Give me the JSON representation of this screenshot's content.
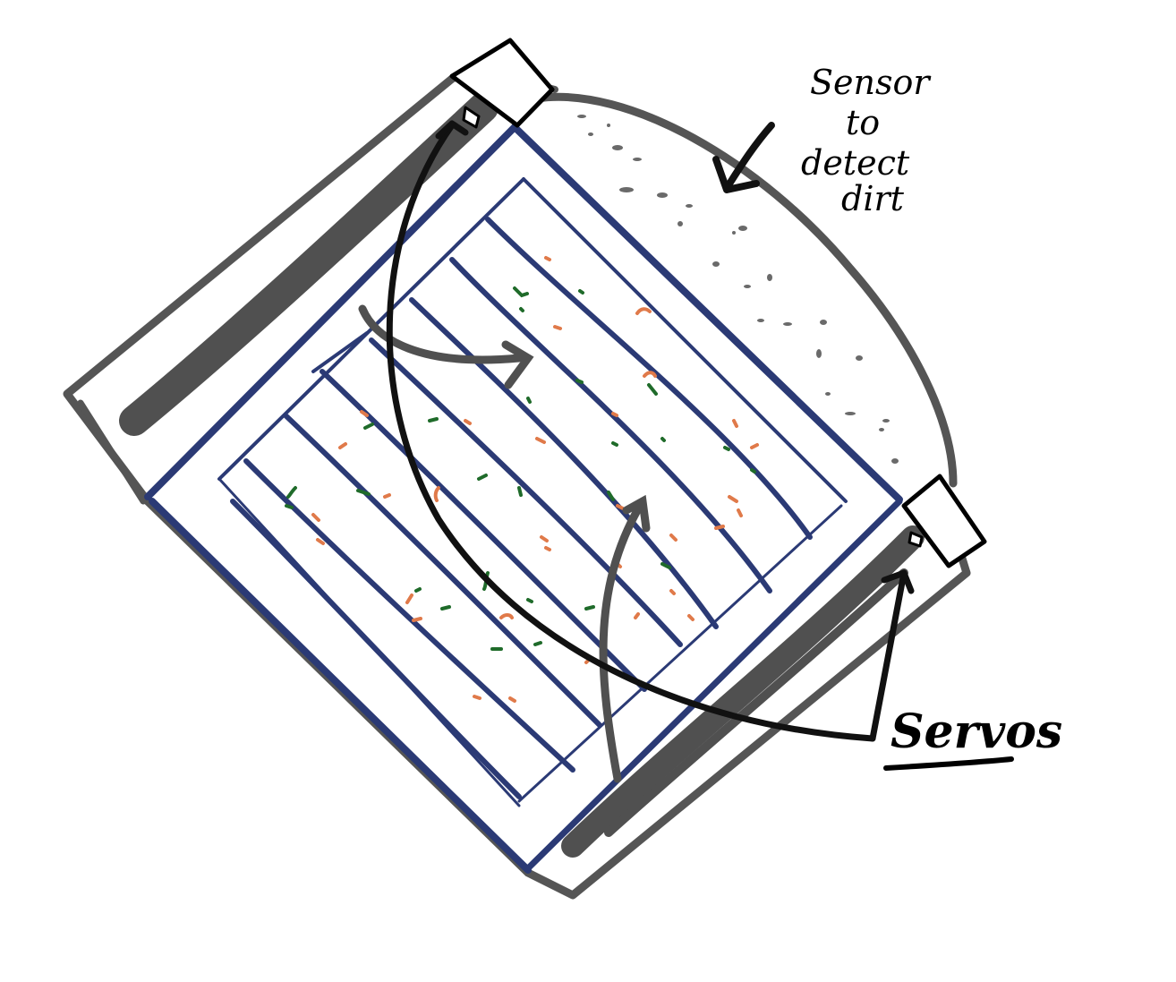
{
  "annotations": {
    "sensor_label": [
      "Sensor",
      "to",
      "detect",
      "dirt"
    ],
    "servos_label": "Servos"
  },
  "colors": {
    "frame_outline": "#555555",
    "panel_blue": "#2b3a75",
    "wiper_black": "#111111",
    "dirt_orange": "#e07a4a",
    "dirt_green": "#1f6b2a",
    "dust_grey": "#6a6a6a"
  },
  "icons": [
    "servo-box-icon",
    "pointer-arrow-icon",
    "rotation-arrow-icon"
  ]
}
